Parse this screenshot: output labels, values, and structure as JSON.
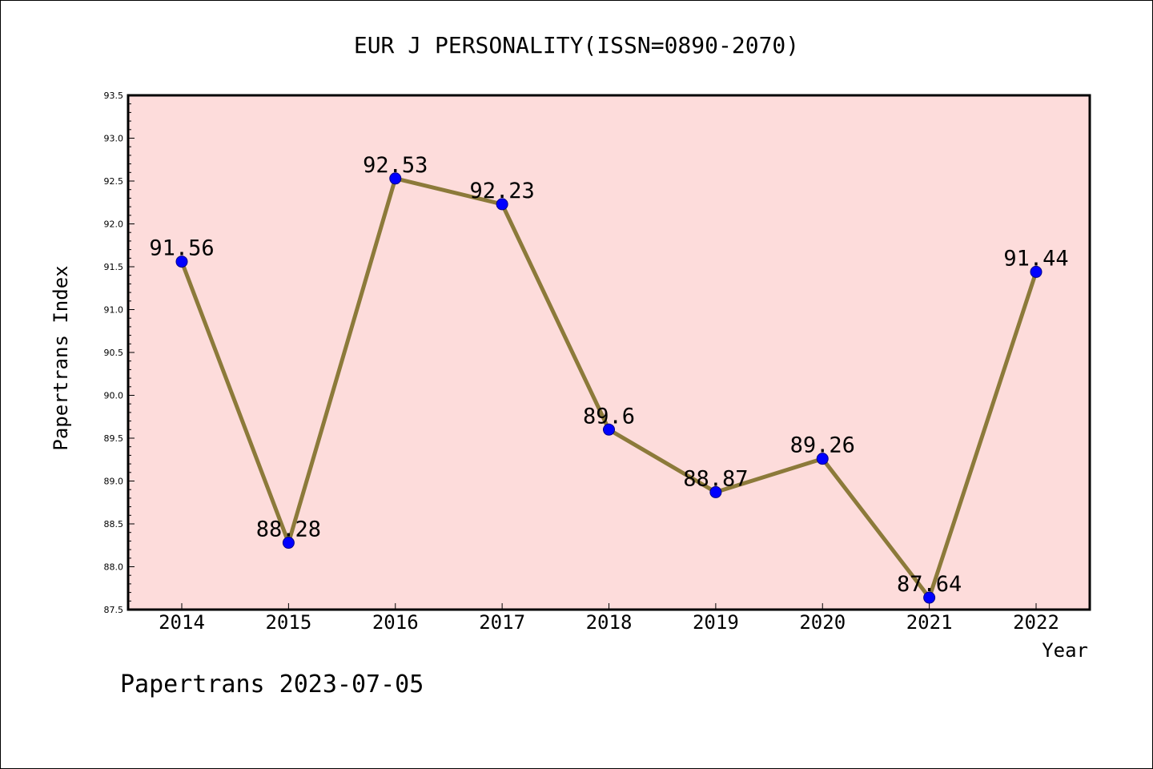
{
  "chart_data": {
    "type": "line",
    "title": "EUR J PERSONALITY(ISSN=0890-2070)",
    "xlabel": "Year",
    "ylabel": "Papertrans Index",
    "categories": [
      "2014",
      "2015",
      "2016",
      "2017",
      "2018",
      "2019",
      "2020",
      "2021",
      "2022"
    ],
    "values": [
      91.56,
      88.28,
      92.53,
      92.23,
      89.6,
      88.87,
      89.26,
      87.64,
      91.44
    ],
    "data_labels": [
      "91.56",
      "88.28",
      "92.53",
      "92.23",
      "89.6",
      "88.87",
      "89.26",
      "87.64",
      "91.44"
    ],
    "ylim": [
      87.5,
      93.5
    ],
    "y_major_step": 0.5,
    "y_minor_step": 0.1,
    "y_tick_labels": [
      "87.5",
      "88.0",
      "88.5",
      "89.0",
      "89.5",
      "90.0",
      "90.5",
      "91.0",
      "91.5",
      "92.0",
      "92.5",
      "93.0",
      "93.5"
    ],
    "grid": false,
    "colors": {
      "plot_background": "#fddcdb",
      "line": "#8c7a3a",
      "marker_fill": "#0000ff",
      "marker_stroke": "#00008b"
    }
  },
  "footer": {
    "text": "Papertrans 2023-07-05"
  }
}
